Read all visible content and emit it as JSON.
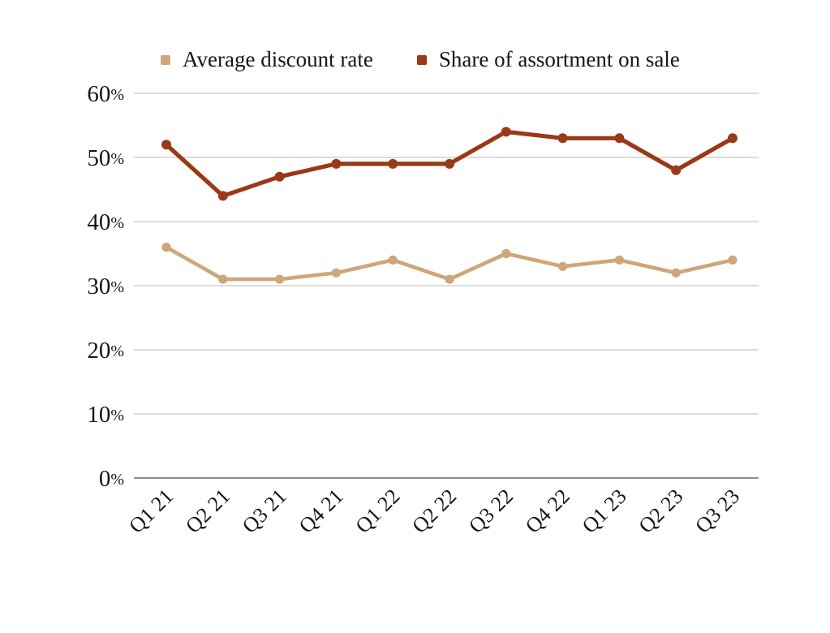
{
  "page": {
    "background": "#ffffff",
    "text_color": "#161616",
    "gridline_color": "#dcdcdc",
    "axis_line_color": "#8f8f8f"
  },
  "legend": {
    "position": "top",
    "items": [
      {
        "label": "Average discount rate",
        "color": "#cda67a"
      },
      {
        "label": "Share of assortment on sale",
        "color": "#9a3917"
      }
    ]
  },
  "chart_data": {
    "type": "line",
    "title": "",
    "xlabel": "",
    "ylabel": "",
    "categories": [
      "Q1 21",
      "Q2 21",
      "Q3 21",
      "Q4 21",
      "Q1 22",
      "Q2 22",
      "Q3 22",
      "Q4 22",
      "Q1 23",
      "Q2 23",
      "Q3 23"
    ],
    "series": [
      {
        "name": "Average discount rate",
        "color": "#cda67a",
        "values": [
          36,
          31,
          31,
          32,
          34,
          31,
          35,
          33,
          34,
          32,
          34
        ]
      },
      {
        "name": "Share of assortment on sale",
        "color": "#9a3917",
        "values": [
          52,
          44,
          47,
          49,
          49,
          49,
          54,
          53,
          53,
          48,
          53
        ]
      }
    ],
    "y_ticks": [
      "0%",
      "10%",
      "20%",
      "30%",
      "40%",
      "50%",
      "60%"
    ],
    "ylim": [
      0,
      60
    ],
    "grid": true,
    "legend_position": "top",
    "x_label_rotation_deg": -45
  }
}
